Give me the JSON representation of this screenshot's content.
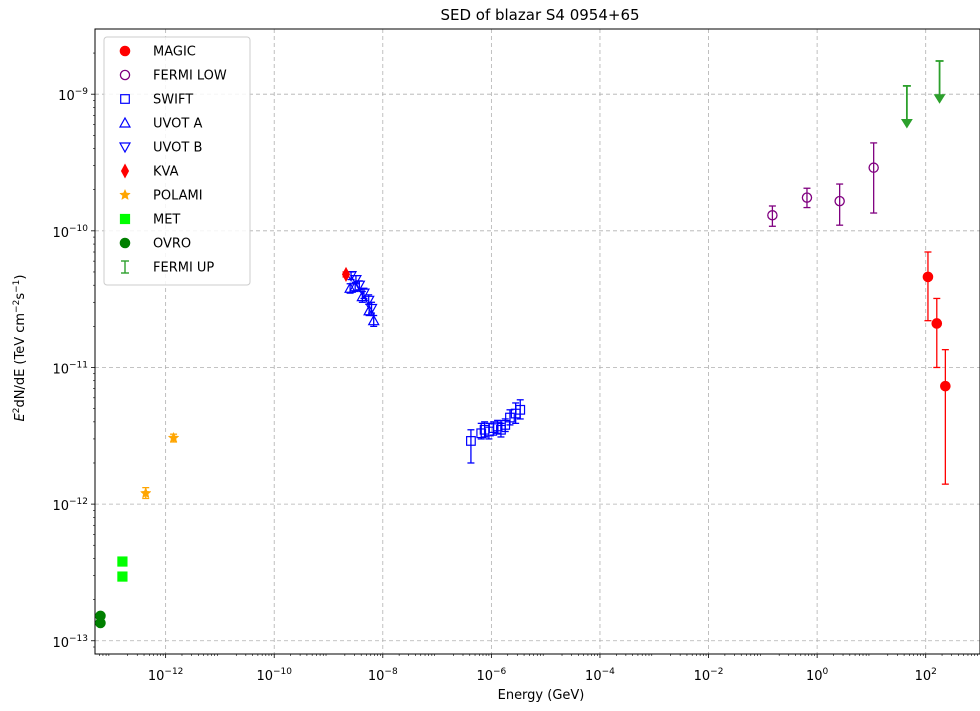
{
  "chart_data": {
    "type": "scatter",
    "title": "SED of blazar S4 0954+65",
    "xlabel": "Energy (GeV)",
    "ylabel_parts": {
      "a": "E",
      "b": "2",
      "c": "dN/dE (TeV cm",
      "d": "−2",
      "e": "s",
      "f": "−1",
      "g": ")"
    },
    "xscale": "log",
    "yscale": "log",
    "xlim": [
      5e-14,
      1000
    ],
    "ylim": [
      8e-14,
      3e-09
    ],
    "grid": true,
    "legend_position": "upper-left",
    "x_ticks": [
      {
        "value": 1e-12,
        "base": "10",
        "exp": "−12"
      },
      {
        "value": 1e-10,
        "base": "10",
        "exp": "−10"
      },
      {
        "value": 1e-08,
        "base": "10",
        "exp": "−8"
      },
      {
        "value": 1e-06,
        "base": "10",
        "exp": "−6"
      },
      {
        "value": 0.0001,
        "base": "10",
        "exp": "−4"
      },
      {
        "value": 0.01,
        "base": "10",
        "exp": "−2"
      },
      {
        "value": 1,
        "base": "10",
        "exp": "0"
      },
      {
        "value": 100,
        "base": "10",
        "exp": "2"
      }
    ],
    "y_ticks": [
      {
        "value": 1e-13,
        "base": "10",
        "exp": "−13"
      },
      {
        "value": 1e-12,
        "base": "10",
        "exp": "−12"
      },
      {
        "value": 1e-11,
        "base": "10",
        "exp": "−11"
      },
      {
        "value": 1e-10,
        "base": "10",
        "exp": "−10"
      },
      {
        "value": 1e-09,
        "base": "10",
        "exp": "−9"
      }
    ],
    "series": [
      {
        "name": "MAGIC",
        "color": "#ff0000",
        "marker": "circle-filled",
        "errcolor": "#ff0000",
        "points": [
          {
            "x": 110,
            "y": 4.6e-11,
            "ylo": 2.2e-11,
            "yhi": 7e-11
          },
          {
            "x": 160,
            "y": 2.1e-11,
            "ylo": 1e-11,
            "yhi": 3.2e-11
          },
          {
            "x": 230,
            "y": 7.3e-12,
            "ylo": 1.4e-12,
            "yhi": 1.35e-11
          }
        ]
      },
      {
        "name": "FERMI LOW",
        "color": "#800080",
        "marker": "circle-open",
        "errcolor": "#800080",
        "points": [
          {
            "x": 0.15,
            "y": 1.3e-10,
            "ylo": 1.08e-10,
            "yhi": 1.52e-10
          },
          {
            "x": 0.65,
            "y": 1.75e-10,
            "ylo": 1.48e-10,
            "yhi": 2.05e-10
          },
          {
            "x": 2.6,
            "y": 1.65e-10,
            "ylo": 1.1e-10,
            "yhi": 2.2e-10
          },
          {
            "x": 11,
            "y": 2.9e-10,
            "ylo": 1.35e-10,
            "yhi": 4.4e-10
          }
        ]
      },
      {
        "name": "SWIFT",
        "color": "#0000ff",
        "marker": "square-open",
        "errcolor": "#0000ff",
        "points": [
          {
            "x": 4.2e-07,
            "y": 2.9e-12,
            "ylo": 2e-12,
            "yhi": 3.5e-12
          },
          {
            "x": 6.5e-07,
            "y": 3.3e-12,
            "ylo": 3e-12,
            "yhi": 3.9e-12
          },
          {
            "x": 7.5e-07,
            "y": 3.5e-12,
            "ylo": 3.1e-12,
            "yhi": 4e-12
          },
          {
            "x": 9e-07,
            "y": 3.4e-12,
            "ylo": 3e-12,
            "yhi": 3.9e-12
          },
          {
            "x": 1.1e-06,
            "y": 3.6e-12,
            "ylo": 3.2e-12,
            "yhi": 4e-12
          },
          {
            "x": 1.3e-06,
            "y": 3.7e-12,
            "ylo": 3.3e-12,
            "yhi": 4.1e-12
          },
          {
            "x": 1.5e-06,
            "y": 3.5e-12,
            "ylo": 3.1e-12,
            "yhi": 3.9e-12
          },
          {
            "x": 1.8e-06,
            "y": 3.8e-12,
            "ylo": 3.4e-12,
            "yhi": 4.2e-12
          },
          {
            "x": 2.2e-06,
            "y": 4.3e-12,
            "ylo": 3.8e-12,
            "yhi": 4.9e-12
          },
          {
            "x": 2.8e-06,
            "y": 4.6e-12,
            "ylo": 3.9e-12,
            "yhi": 5.5e-12
          },
          {
            "x": 3.4e-06,
            "y": 4.9e-12,
            "ylo": 4.2e-12,
            "yhi": 5.8e-12
          }
        ]
      },
      {
        "name": "UVOT A",
        "color": "#0000ff",
        "marker": "triangle-up-open",
        "errcolor": "#0000ff",
        "points": [
          {
            "x": 2.5e-09,
            "y": 3.8e-11,
            "ylo": 3.5e-11,
            "yhi": 4.1e-11
          },
          {
            "x": 3.1e-09,
            "y": 3.9e-11,
            "ylo": 3.6e-11,
            "yhi": 4.2e-11
          },
          {
            "x": 4.2e-09,
            "y": 3.3e-11,
            "ylo": 3e-11,
            "yhi": 3.6e-11
          },
          {
            "x": 5.6e-09,
            "y": 2.6e-11,
            "ylo": 2.4e-11,
            "yhi": 2.9e-11
          },
          {
            "x": 6.8e-09,
            "y": 2.2e-11,
            "ylo": 2e-11,
            "yhi": 2.4e-11
          }
        ]
      },
      {
        "name": "UVOT B",
        "color": "#0000ff",
        "marker": "triangle-down-open",
        "errcolor": "#0000ff",
        "points": [
          {
            "x": 2.6e-09,
            "y": 4.7e-11,
            "ylo": 4.4e-11,
            "yhi": 5e-11
          },
          {
            "x": 3.2e-09,
            "y": 4.4e-11,
            "ylo": 4.1e-11,
            "yhi": 4.7e-11
          },
          {
            "x": 3.7e-09,
            "y": 4e-11,
            "ylo": 3.7e-11,
            "yhi": 4.3e-11
          },
          {
            "x": 4.5e-09,
            "y": 3.5e-11,
            "ylo": 3.2e-11,
            "yhi": 3.8e-11
          },
          {
            "x": 5.5e-09,
            "y": 3.1e-11,
            "ylo": 2.9e-11,
            "yhi": 3.4e-11
          },
          {
            "x": 6.2e-09,
            "y": 2.7e-11,
            "ylo": 2.5e-11,
            "yhi": 3e-11
          }
        ]
      },
      {
        "name": "KVA",
        "color": "#ff0000",
        "marker": "diamond-thin",
        "errcolor": "#ff0000",
        "points": [
          {
            "x": 2.1e-09,
            "y": 4.8e-11,
            "ylo": 4.6e-11,
            "yhi": 5e-11
          }
        ]
      },
      {
        "name": "POLAMI",
        "color": "#ffa500",
        "marker": "star",
        "errcolor": "#ffa500",
        "points": [
          {
            "x": 4.3e-13,
            "y": 1.2e-12,
            "ylo": 1.1e-12,
            "yhi": 1.32e-12
          },
          {
            "x": 1.4e-12,
            "y": 3.05e-12,
            "ylo": 2.85e-12,
            "yhi": 3.25e-12
          }
        ]
      },
      {
        "name": "MET",
        "color": "#00ff00",
        "marker": "square-filled",
        "errcolor": "#00ff00",
        "points": [
          {
            "x": 1.6e-13,
            "y": 3.8e-13
          },
          {
            "x": 1.6e-13,
            "y": 2.95e-13
          }
        ]
      },
      {
        "name": "OVRO",
        "color": "#008000",
        "marker": "circle-filled",
        "errcolor": "#008000",
        "points": [
          {
            "x": 6.3e-14,
            "y": 1.52e-13
          },
          {
            "x": 6.3e-14,
            "y": 1.35e-13
          }
        ]
      },
      {
        "name": "FERMI UP",
        "color": "#2ca02c",
        "marker": "upper-limit",
        "errcolor": "#2ca02c",
        "points": [
          {
            "x": 45,
            "y": 1.15e-09,
            "ylo": 5.8e-10
          },
          {
            "x": 180,
            "y": 1.75e-09,
            "ylo": 8.8e-10
          }
        ]
      }
    ]
  }
}
